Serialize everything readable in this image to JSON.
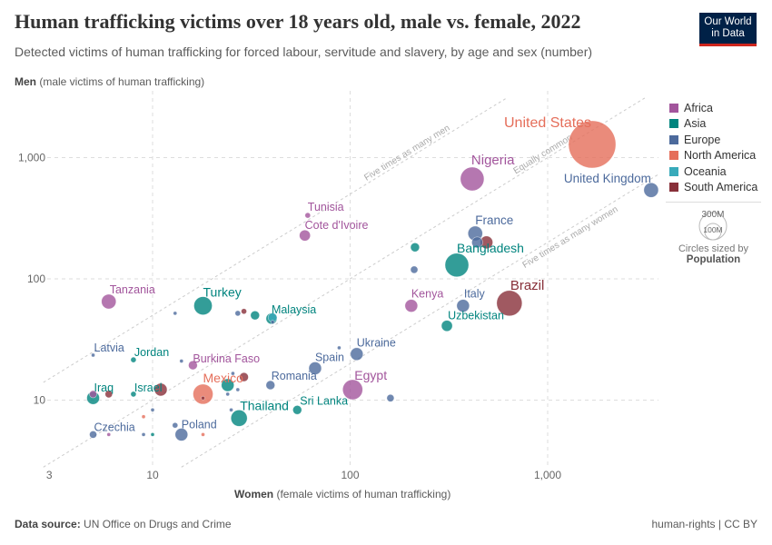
{
  "header": {
    "title": "Human trafficking victims over 18 years old, male vs. female, 2022",
    "subtitle": "Detected victims of human trafficking for forced labour, servitude and slavery, by age and sex (number)",
    "logo": "Our World in Data"
  },
  "footer": {
    "source_label": "Data source:",
    "source": "UN Office on Drugs and Crime",
    "license": "human-rights | CC BY"
  },
  "chart_data": {
    "type": "scatter",
    "title": "Human trafficking victims over 18 years old, male vs. female, 2022",
    "xlabel_bold": "Women",
    "xlabel": "(female victims of human trafficking)",
    "ylabel_bold": "Men",
    "ylabel": "(male victims of human trafficking)",
    "x_scale": "log",
    "y_scale": "log",
    "xlim": [
      2.8,
      3600
    ],
    "ylim": [
      2.8,
      3100
    ],
    "x_ticks": [
      {
        "v": 3,
        "label": "3"
      },
      {
        "v": 10,
        "label": "10"
      },
      {
        "v": 100,
        "label": "100"
      },
      {
        "v": 1000,
        "label": "1,000"
      }
    ],
    "y_ticks": [
      {
        "v": 10,
        "label": "10"
      },
      {
        "v": 100,
        "label": "100"
      },
      {
        "v": 1000,
        "label": "1,000"
      }
    ],
    "grid": true,
    "reference_lines": [
      {
        "ratio": 5,
        "label": "Five times as many men"
      },
      {
        "ratio": 1,
        "label": "Equally common"
      },
      {
        "ratio": 0.2,
        "label": "Five times as many women"
      }
    ],
    "legend": {
      "placement": "right",
      "title": "",
      "items": [
        {
          "name": "Africa",
          "color": "#a2559c"
        },
        {
          "name": "Asia",
          "color": "#00847e"
        },
        {
          "name": "Europe",
          "color": "#4c6a9c"
        },
        {
          "name": "North America",
          "color": "#e56e5a"
        },
        {
          "name": "Oceania",
          "color": "#38aaba"
        },
        {
          "name": "South America",
          "color": "#883039"
        }
      ]
    },
    "size_legend": {
      "large": "300M",
      "small": "100M",
      "caption": "Circles sized by",
      "variable": "Population"
    },
    "points": [
      {
        "label": "United States",
        "region": "North America",
        "x": 1680,
        "y": 1285,
        "pop": 335
      },
      {
        "label": "Nigeria",
        "region": "Africa",
        "x": 415,
        "y": 667,
        "pop": 84
      },
      {
        "label": "United Kingdom",
        "region": "Europe",
        "x": 3340,
        "y": 540,
        "pop": 32
      },
      {
        "label": "Tunisia",
        "region": "Africa",
        "x": 61,
        "y": 334,
        "pop": 4.5
      },
      {
        "label": "Cote d'Ivoire",
        "region": "Africa",
        "x": 59,
        "y": 228,
        "pop": 18
      },
      {
        "label": "",
        "region": "Europe",
        "x": 440,
        "y": 200,
        "pop": 18
      },
      {
        "label": "",
        "region": "South America",
        "x": 490,
        "y": 200,
        "pop": 24
      },
      {
        "label": "France",
        "region": "Europe",
        "x": 430,
        "y": 237,
        "pop": 32
      },
      {
        "label": "",
        "region": "Asia",
        "x": 213,
        "y": 182,
        "pop": 12
      },
      {
        "label": "",
        "region": "Europe",
        "x": 211,
        "y": 119,
        "pop": 8
      },
      {
        "label": "Bangladesh",
        "region": "Asia",
        "x": 347,
        "y": 130,
        "pop": 84
      },
      {
        "label": "Brazil",
        "region": "South America",
        "x": 640,
        "y": 63,
        "pop": 97
      },
      {
        "label": "Kenya",
        "region": "Africa",
        "x": 204,
        "y": 60,
        "pop": 24
      },
      {
        "label": "Italy",
        "region": "Europe",
        "x": 373,
        "y": 60,
        "pop": 24
      },
      {
        "label": "Uzbekistan",
        "region": "Asia",
        "x": 309,
        "y": 41,
        "pop": 18
      },
      {
        "label": "Tanzania",
        "region": "Africa",
        "x": 6,
        "y": 65,
        "pop": 32
      },
      {
        "label": "Turkey",
        "region": "Asia",
        "x": 18,
        "y": 60,
        "pop": 50
      },
      {
        "label": "",
        "region": "Europe",
        "x": 13,
        "y": 52,
        "pop": 2
      },
      {
        "label": "",
        "region": "Europe",
        "x": 27,
        "y": 52,
        "pop": 4.5
      },
      {
        "label": "",
        "region": "South America",
        "x": 29,
        "y": 54,
        "pop": 4.5
      },
      {
        "label": "",
        "region": "Asia",
        "x": 33,
        "y": 50,
        "pop": 12
      },
      {
        "label": "Malaysia",
        "region": "Asia",
        "x": 40,
        "y": 47,
        "pop": 18
      },
      {
        "label": "",
        "region": "Oceania",
        "x": 40.5,
        "y": 48,
        "pop": 12
      },
      {
        "label": "",
        "region": "Europe",
        "x": 40.5,
        "y": 44,
        "pop": 2
      },
      {
        "label": "Latvia",
        "region": "Europe",
        "x": 5,
        "y": 23.5,
        "pop": 2
      },
      {
        "label": "Jordan",
        "region": "Asia",
        "x": 8,
        "y": 21.5,
        "pop": 4.5
      },
      {
        "label": "",
        "region": "Europe",
        "x": 14,
        "y": 21,
        "pop": 2
      },
      {
        "label": "Burkina Faso",
        "region": "Africa",
        "x": 16,
        "y": 19.4,
        "pop": 12
      },
      {
        "label": "Spain",
        "region": "Europe",
        "x": 66.5,
        "y": 18.3,
        "pop": 24
      },
      {
        "label": "",
        "region": "Europe",
        "x": 88,
        "y": 27,
        "pop": 2
      },
      {
        "label": "Ukraine",
        "region": "Europe",
        "x": 108,
        "y": 24,
        "pop": 24
      },
      {
        "label": "",
        "region": "Europe",
        "x": 25.5,
        "y": 16.6,
        "pop": 2
      },
      {
        "label": "",
        "region": "South America",
        "x": 29,
        "y": 15.5,
        "pop": 12
      },
      {
        "label": "",
        "region": "Asia",
        "x": 24,
        "y": 13.3,
        "pop": 24
      },
      {
        "label": "",
        "region": "Europe",
        "x": 27,
        "y": 12.2,
        "pop": 2
      },
      {
        "label": "",
        "region": "Europe",
        "x": 24,
        "y": 11.2,
        "pop": 2
      },
      {
        "label": "Mexico",
        "region": "North America",
        "x": 18,
        "y": 11.2,
        "pop": 60
      },
      {
        "label": "",
        "region": "South America",
        "x": 18,
        "y": 10.4,
        "pop": 2
      },
      {
        "label": "Romania",
        "region": "Europe",
        "x": 39.5,
        "y": 13.3,
        "pop": 12
      },
      {
        "label": "Egypt",
        "region": "Africa",
        "x": 103,
        "y": 12.2,
        "pop": 60
      },
      {
        "label": "",
        "region": "Europe",
        "x": 160,
        "y": 10.4,
        "pop": 8
      },
      {
        "label": "Iraq",
        "region": "Asia",
        "x": 5,
        "y": 10.4,
        "pop": 24
      },
      {
        "label": "",
        "region": "Africa",
        "x": 5,
        "y": 11.2,
        "pop": 8
      },
      {
        "label": "",
        "region": "South America",
        "x": 6,
        "y": 11.2,
        "pop": 8
      },
      {
        "label": "Israel",
        "region": "Asia",
        "x": 8,
        "y": 11.2,
        "pop": 4.5
      },
      {
        "label": "",
        "region": "South America",
        "x": 11,
        "y": 12.2,
        "pop": 24
      },
      {
        "label": "",
        "region": "Europe",
        "x": 10,
        "y": 8.3,
        "pop": 2
      },
      {
        "label": "",
        "region": "North America",
        "x": 9,
        "y": 7.3,
        "pop": 2
      },
      {
        "label": "",
        "region": "Europe",
        "x": 25,
        "y": 8.3,
        "pop": 2
      },
      {
        "label": "Thailand",
        "region": "Asia",
        "x": 27.4,
        "y": 7.1,
        "pop": 40
      },
      {
        "label": "Sri Lanka",
        "region": "Asia",
        "x": 54,
        "y": 8.3,
        "pop": 12
      },
      {
        "label": "",
        "region": "Europe",
        "x": 13,
        "y": 6.2,
        "pop": 4.5
      },
      {
        "label": "Poland",
        "region": "Europe",
        "x": 14,
        "y": 5.2,
        "pop": 24
      },
      {
        "label": "Czechia",
        "region": "Europe",
        "x": 5,
        "y": 5.2,
        "pop": 8
      },
      {
        "label": "",
        "region": "Africa",
        "x": 6,
        "y": 5.2,
        "pop": 2
      },
      {
        "label": "",
        "region": "Europe",
        "x": 9,
        "y": 5.2,
        "pop": 2
      },
      {
        "label": "",
        "region": "Asia",
        "x": 10,
        "y": 5.2,
        "pop": 2
      },
      {
        "label": "",
        "region": "North America",
        "x": 18,
        "y": 5.2,
        "pop": 2
      }
    ]
  }
}
